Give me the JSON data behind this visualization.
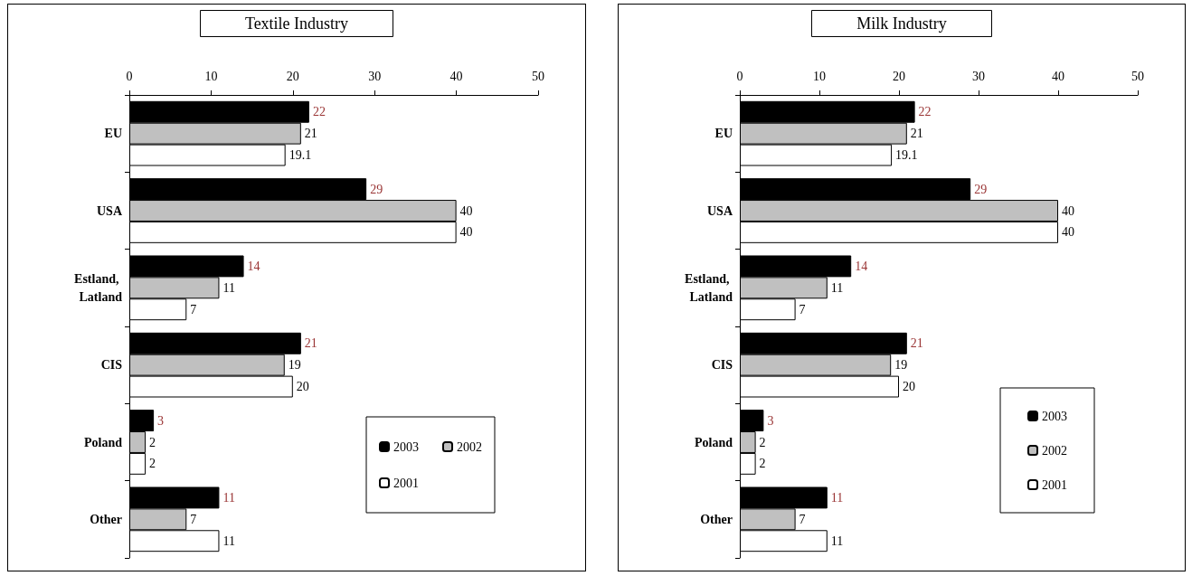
{
  "chart_data": [
    {
      "type": "bar",
      "orientation": "horizontal",
      "title": "Textile Industry",
      "categories": [
        "EU",
        "USA",
        "Estland, Latland",
        "CIS",
        "Poland",
        "Other"
      ],
      "series": [
        {
          "name": "2003",
          "color": "#000000",
          "values": [
            22,
            29,
            14,
            21,
            3,
            11
          ]
        },
        {
          "name": "2002",
          "color": "#c0c0c0",
          "values": [
            21,
            40,
            11,
            19,
            2,
            7
          ]
        },
        {
          "name": "2001",
          "color": "#ffffff",
          "values": [
            19.1,
            40,
            7,
            20,
            2,
            11
          ]
        }
      ],
      "xlim": [
        0,
        50
      ],
      "xticks": [
        0,
        10,
        20,
        30,
        40,
        50
      ],
      "data_labels": true,
      "grid": false,
      "legend": "bottom right"
    },
    {
      "type": "bar",
      "orientation": "horizontal",
      "title": "Milk Industry",
      "categories": [
        "EU",
        "USA",
        "Estland, Latland",
        "CIS",
        "Poland",
        "Other"
      ],
      "series": [
        {
          "name": "2003",
          "color": "#000000",
          "values": [
            22,
            29,
            14,
            21,
            3,
            11
          ]
        },
        {
          "name": "2002",
          "color": "#c0c0c0",
          "values": [
            21,
            40,
            11,
            19,
            2,
            7
          ]
        },
        {
          "name": "2001",
          "color": "#ffffff",
          "values": [
            19.1,
            40,
            7,
            20,
            2,
            11
          ]
        }
      ],
      "xlim": [
        0,
        50
      ],
      "xticks": [
        0,
        10,
        20,
        30,
        40,
        50
      ],
      "data_labels": true,
      "grid": false,
      "legend": "bottom right"
    }
  ]
}
